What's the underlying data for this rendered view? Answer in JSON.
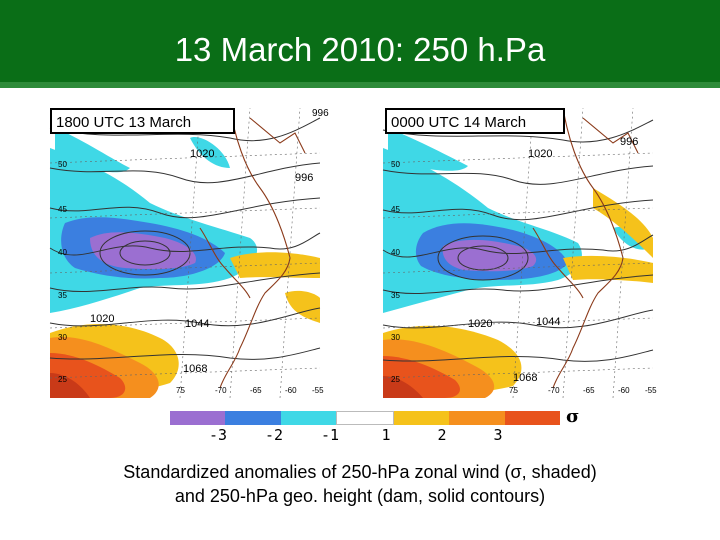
{
  "title": "13 March 2010: 250 h.Pa",
  "panels": [
    {
      "label": "1800 UTC 13 March",
      "height_labels": [
        "996",
        "1020",
        "996",
        "1020",
        "1044",
        "1068"
      ],
      "lat_labels": [
        "50",
        "45",
        "40",
        "35",
        "30",
        "25"
      ],
      "lon_labels": [
        "75",
        "-70",
        "-65",
        "-60",
        "-55"
      ]
    },
    {
      "label": "0000 UTC 14 March",
      "height_labels": [
        "996",
        "1020",
        "1020",
        "1044",
        "1068"
      ],
      "lat_labels": [
        "50",
        "45",
        "40",
        "35",
        "30",
        "25"
      ],
      "lon_labels": [
        "75",
        "-70",
        "-65",
        "-60",
        "-55"
      ]
    }
  ],
  "colorbar": {
    "colors": [
      "#9b6fd1",
      "#3b7fe0",
      "#3fd8e6",
      "#ffffff",
      "#f5c21b",
      "#f58f1e",
      "#e8531c"
    ],
    "ticks": [
      "-3",
      "-2",
      "-1",
      "1",
      "2",
      "3"
    ],
    "unit_symbol": "σ"
  },
  "caption": {
    "line1": "Standardized anomalies of 250-hPa zonal wind (σ, shaded)",
    "line2": "and 250-hPa geo. height (dam, solid contours)"
  }
}
